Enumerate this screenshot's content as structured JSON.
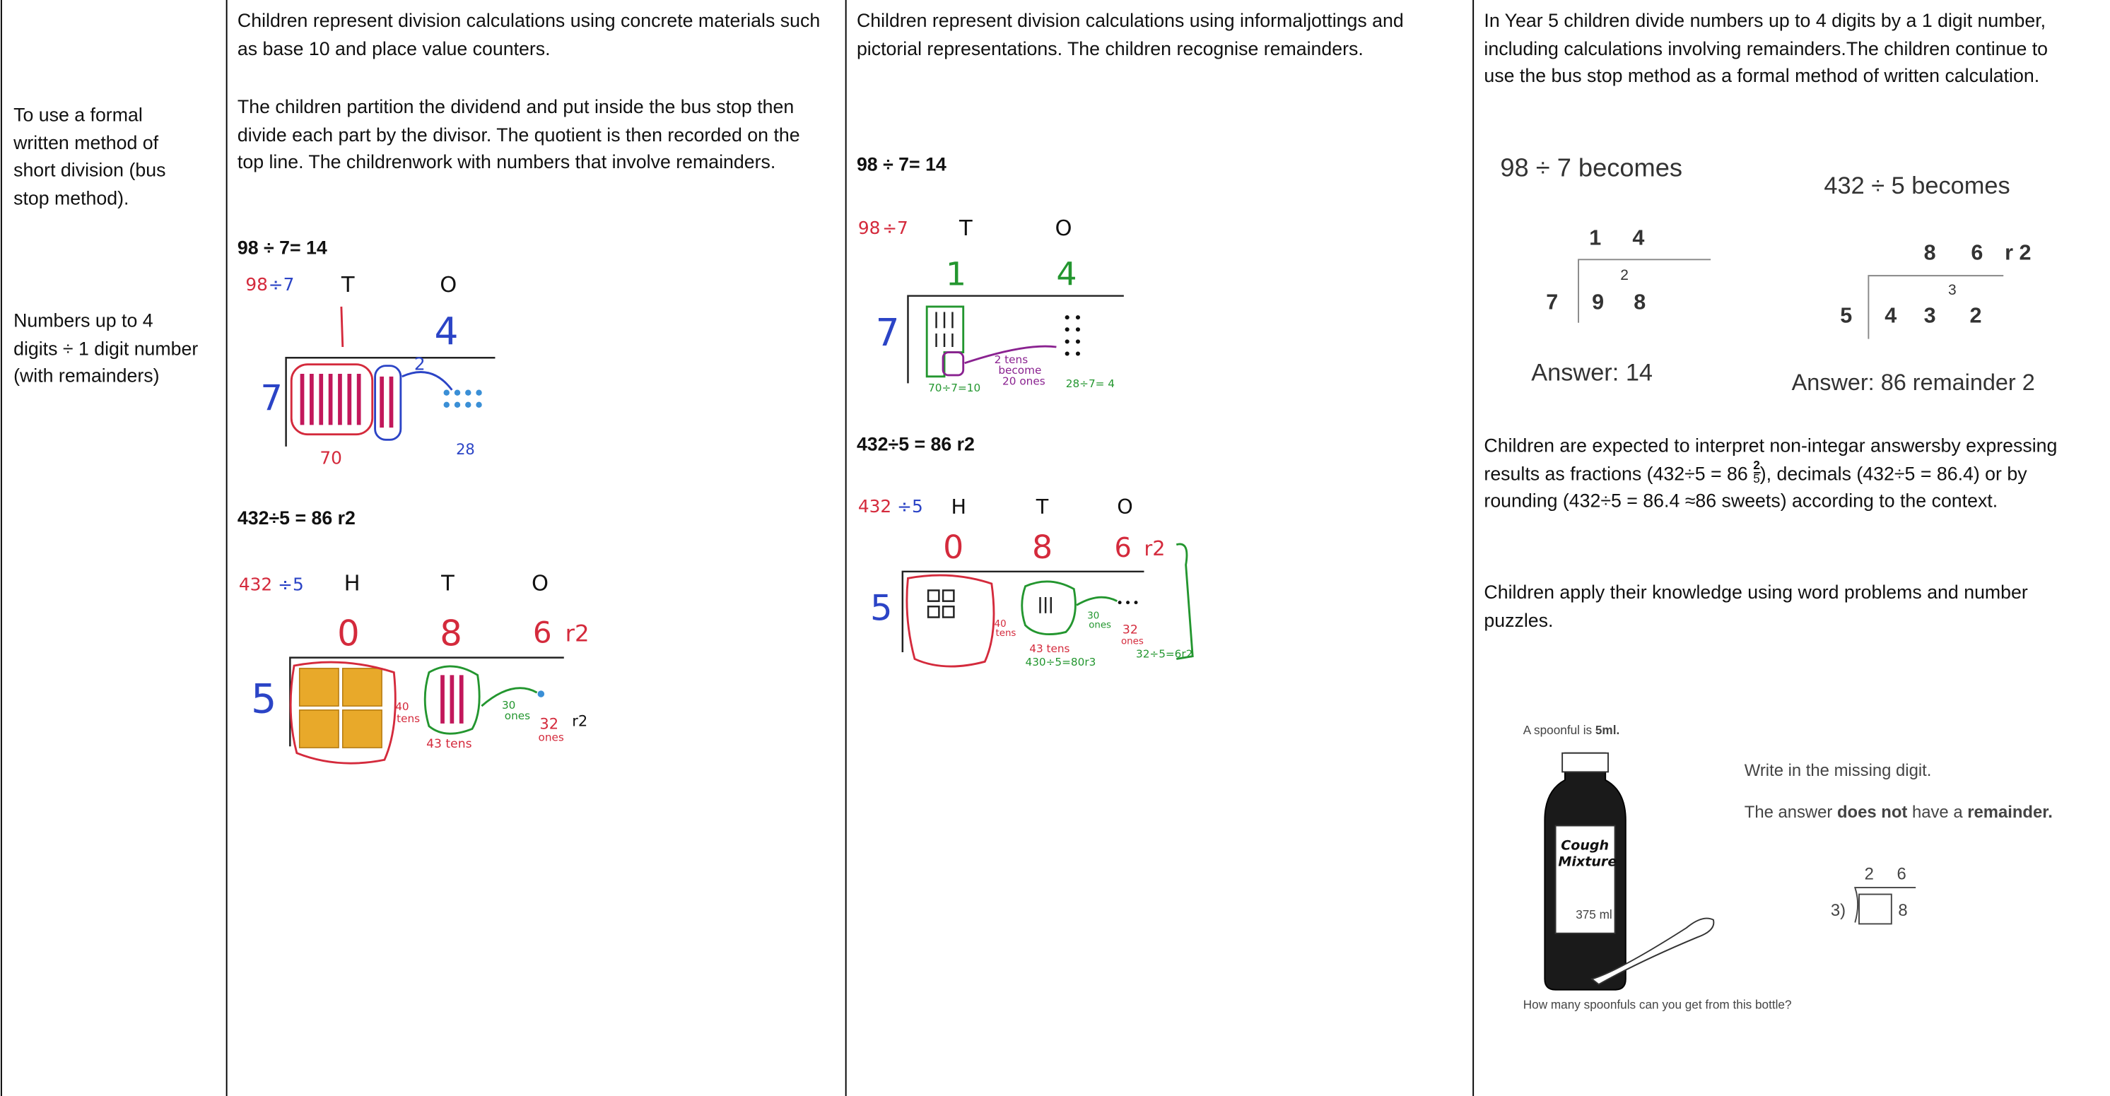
{
  "objective_column": {
    "objective": "To use a formal written method of short division (bus stop method).",
    "scope": "Numbers up to 4 digits ÷ 1 digit number (with remainders)"
  },
  "concrete_column": {
    "paragraphs": [
      "Children represent division calculations using concrete materials such as base 10 and place value counters.",
      "The children partition the dividend and put inside the bus stop then divide each part by the divisor. The quotient is then recorded on the top line. The childrenwork with numbers that involve remainders."
    ],
    "example_1": {
      "heading": "98 ÷ 7= 14",
      "labels": [
        "98",
        "÷7",
        "T",
        "O",
        "4",
        "7",
        "2",
        "70",
        "28"
      ]
    },
    "example_2": {
      "heading": "432÷5 = 86 r2",
      "labels": [
        "432",
        "÷5",
        "H",
        "T",
        "O",
        "0",
        "8",
        "6",
        "r2",
        "5",
        "40",
        "tens",
        "43 tens",
        "30",
        "ones",
        "32",
        "ones",
        "r2"
      ]
    }
  },
  "pictorial_column": {
    "paragraphs": [
      "Children represent division calculations using informaljottings and pictorial representations. The children recognise remainders."
    ],
    "example_1": {
      "heading": "98 ÷ 7= 14",
      "labels": [
        "98",
        "÷7",
        "T",
        "O",
        "1",
        "4",
        "7",
        "2 tens",
        "become",
        "20 ones",
        "70÷7=10",
        "28÷7= 4"
      ]
    },
    "example_2": {
      "heading": "432÷5 = 86 r2",
      "labels": [
        "432",
        "÷5",
        "H",
        "T",
        "O",
        "0",
        "8",
        "6",
        "r2",
        "5",
        "40",
        "tens",
        "30",
        "ones",
        "43 tens",
        "430÷5=80r3",
        "32",
        "ones",
        "32÷5=6r2"
      ]
    }
  },
  "formal_column": {
    "paragraphs": [
      "In Year 5 children divide numbers up to 4 digits by a 1 digit number, including calculations involving remainders.The children continue to use the bus stop method as a formal method of written calculation.",
      "Children apply their knowledge using word problems and number puzzles."
    ],
    "interpretation": {
      "before": "Children are expected to interpret non-integar answersby expressing results as fractions (432÷5 = 86",
      "numerator": "2",
      "denominator": "5",
      "after": "), decimals (432÷5 = 86.4) or by rounding (432÷5 = 86.4 ≈86 sweets) according to the context."
    },
    "example_98": {
      "title": "98 ÷ 7 becomes",
      "quotient": [
        "1",
        "4"
      ],
      "divisor": "7",
      "dividend": [
        "9",
        "8"
      ],
      "carry": "2",
      "answer": "Answer: 14"
    },
    "example_432": {
      "title": "432 ÷ 5 becomes",
      "quotient": [
        "8",
        "6",
        "r 2"
      ],
      "divisor": "5",
      "dividend": [
        "4",
        "3",
        "2"
      ],
      "carry": "3",
      "answer": "Answer: 86 remainder 2"
    },
    "puzzle": {
      "spoonful": [
        "A spoonful is ",
        "5ml."
      ],
      "bottle_label": [
        "Cough",
        "Mixture"
      ],
      "volume": "375 ml",
      "question": "How many spoonfuls can you get from this bottle?",
      "instruction": "Write in the missing digit.",
      "condition": [
        "The answer ",
        "does not",
        " have a ",
        "remainder."
      ],
      "quotient": [
        "2",
        "6"
      ],
      "divisor": "3)",
      "dividend_last": "8"
    }
  }
}
